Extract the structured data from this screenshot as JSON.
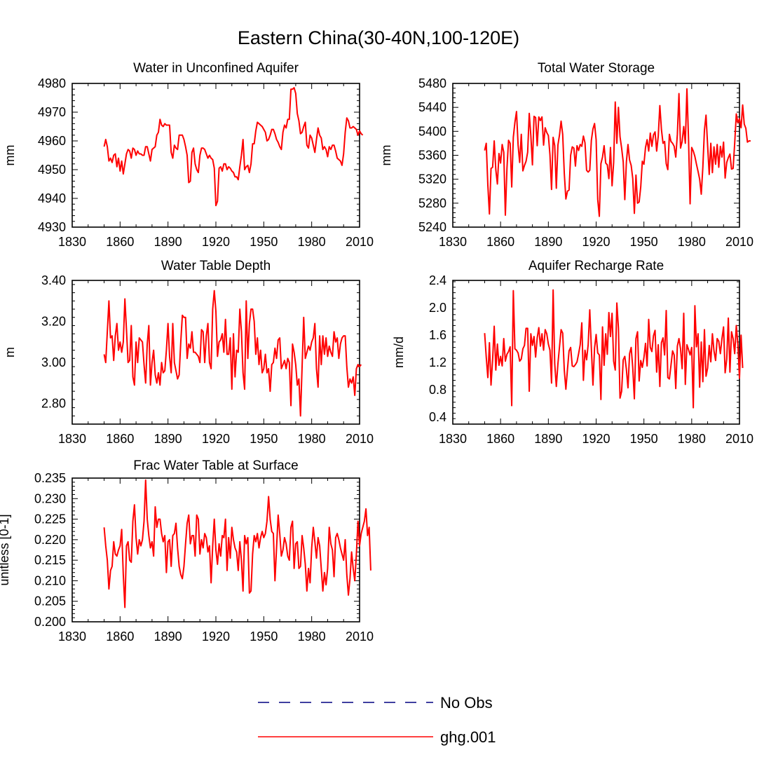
{
  "title": "Eastern China(30-40N,100-120E)",
  "colors": {
    "series": "#ff0000",
    "no_obs": "#000080",
    "axis": "#000000"
  },
  "legend": [
    {
      "label": "No Obs",
      "style": "dashed"
    },
    {
      "label": "ghg.001",
      "style": "solid"
    }
  ],
  "chart_data": [
    {
      "type": "line",
      "title": "Water in Unconfined Aquifer",
      "ylabel": "mm",
      "xlim": [
        1830,
        2010
      ],
      "ylim": [
        4930,
        4980
      ],
      "xticks": [
        1830,
        1860,
        1890,
        1920,
        1950,
        1980,
        2010
      ],
      "yticks": [
        4930,
        4940,
        4950,
        4960,
        4970,
        4980
      ],
      "ytick_labels": [
        "4930",
        "4940",
        "4950",
        "4960",
        "4970",
        "4980"
      ],
      "series": [
        {
          "name": "ghg.001",
          "x_start": 1850,
          "x_step": 1,
          "values": [
            4958,
            4960.5,
            4958,
            4953,
            4954,
            4952.5,
            4955,
            4955.5,
            4951,
            4954,
            4949.5,
            4953,
            4948.5,
            4952,
            4955.5,
            4957,
            4956.5,
            4954,
            4957.5,
            4957,
            4955,
            4956.5,
            4955.5,
            4955.5,
            4955,
            4955,
            4958,
            4958,
            4955.5,
            4953,
            4957,
            4957.5,
            4958,
            4962,
            4963,
            4967.5,
            4965.5,
            4965,
            4966,
            4965.5,
            4965.5,
            4965.5,
            4956,
            4954,
            4958.5,
            4957.5,
            4957,
            4962,
            4962,
            4962,
            4960.5,
            4958,
            4955,
            4945.5,
            4946,
            4956,
            4957.5,
            4952,
            4950,
            4949,
            4955,
            4957.5,
            4957.5,
            4957,
            4955.5,
            4954,
            4955,
            4954,
            4953.5,
            4950.5,
            4937.5,
            4939,
            4950.5,
            4951,
            4949.5,
            4952,
            4952,
            4950,
            4951,
            4950.5,
            4949.5,
            4949,
            4947.5,
            4947.5,
            4946.5,
            4951,
            4955,
            4960.5,
            4950,
            4951,
            4951.5,
            4949,
            4952,
            4959,
            4959,
            4963.5,
            4966.5,
            4966,
            4965.5,
            4965,
            4964,
            4963,
            4960,
            4960.5,
            4962,
            4964,
            4964,
            4962.5,
            4960.5,
            4959.5,
            4958,
            4957,
            4963,
            4965.5,
            4964.5,
            4967.5,
            4967.5,
            4978,
            4978,
            4978.5,
            4976.5,
            4969.5,
            4967,
            4962.5,
            4963,
            4965,
            4966.5,
            4958.5,
            4957.5,
            4962,
            4961,
            4958.5,
            4956,
            4960.5,
            4964.5,
            4962,
            4961,
            4957,
            4958,
            4957,
            4954.5,
            4958,
            4957,
            4958.5,
            4958.5,
            4956.5,
            4954,
            4953.5,
            4953,
            4951.5,
            4955.5,
            4963,
            4968,
            4967,
            4964.5,
            4964.5,
            4965,
            4964.5,
            4964,
            4962,
            4963.5,
            4962.5,
            4962
          ]
        }
      ]
    },
    {
      "type": "line",
      "title": "Total Water Storage",
      "ylabel": "mm",
      "xlim": [
        1830,
        2010
      ],
      "ylim": [
        5240,
        5480
      ],
      "xticks": [
        1830,
        1860,
        1890,
        1920,
        1950,
        1980,
        2010
      ],
      "yticks": [
        5240,
        5280,
        5320,
        5360,
        5400,
        5440,
        5480
      ],
      "ytick_labels": [
        "5240",
        "5280",
        "5320",
        "5360",
        "5400",
        "5440",
        "5480"
      ],
      "series": [
        {
          "name": "ghg.001",
          "x_start": 1850,
          "x_step": 1,
          "values": [
            5368,
            5380,
            5310,
            5262,
            5338,
            5340,
            5384,
            5336,
            5312,
            5363,
            5347,
            5378,
            5365,
            5260,
            5338,
            5385,
            5380,
            5307,
            5390,
            5415,
            5433,
            5377,
            5348,
            5395,
            5334,
            5343,
            5350,
            5365,
            5430,
            5393,
            5344,
            5425,
            5423,
            5376,
            5424,
            5418,
            5424,
            5377,
            5406,
            5398,
            5393,
            5361,
            5303,
            5390,
            5376,
            5305,
            5377,
            5394,
            5417,
            5395,
            5330,
            5287,
            5300,
            5302,
            5360,
            5374,
            5372,
            5342,
            5376,
            5368,
            5378,
            5375,
            5392,
            5381,
            5335,
            5332,
            5335,
            5385,
            5404,
            5413,
            5386,
            5286,
            5258,
            5346,
            5357,
            5376,
            5347,
            5344,
            5321,
            5373,
            5309,
            5348,
            5449,
            5380,
            5440,
            5391,
            5372,
            5349,
            5286,
            5349,
            5378,
            5352,
            5343,
            5321,
            5263,
            5327,
            5280,
            5282,
            5307,
            5350,
            5345,
            5373,
            5386,
            5367,
            5397,
            5375,
            5394,
            5399,
            5367,
            5392,
            5443,
            5403,
            5380,
            5383,
            5346,
            5336,
            5395,
            5383,
            5380,
            5375,
            5357,
            5395,
            5463,
            5372,
            5383,
            5408,
            5380,
            5471,
            5388,
            5279,
            5373,
            5367,
            5358,
            5345,
            5333,
            5320,
            5295,
            5340,
            5402,
            5427,
            5376,
            5328,
            5380,
            5331,
            5374,
            5345,
            5378,
            5340,
            5375,
            5357,
            5382,
            5322,
            5348,
            5356,
            5362,
            5337,
            5338,
            5380,
            5429,
            5414,
            5421,
            5406,
            5444,
            5412,
            5405,
            5382,
            5384,
            5384
          ]
        }
      ]
    },
    {
      "type": "line",
      "title": "Water Table Depth",
      "ylabel": "m",
      "xlim": [
        1830,
        2010
      ],
      "ylim": [
        2.7,
        3.4
      ],
      "xticks": [
        1830,
        1860,
        1890,
        1920,
        1950,
        1980,
        2010
      ],
      "yticks": [
        2.8,
        3.0,
        3.2,
        3.4
      ],
      "ytick_labels": [
        "2.80",
        "3.00",
        "3.20",
        "3.40"
      ],
      "series": [
        {
          "name": "ghg.001",
          "x_start": 1850,
          "x_step": 1,
          "values": [
            3.04,
            3.0,
            3.15,
            3.3,
            3.12,
            3.13,
            3.01,
            3.13,
            3.19,
            3.06,
            3.1,
            3.05,
            3.1,
            3.31,
            3.16,
            3.0,
            3.01,
            3.18,
            2.93,
            2.89,
            3.1,
            3.0,
            3.12,
            3.11,
            3.1,
            2.99,
            2.9,
            3.09,
            3.18,
            2.89,
            3.0,
            3.06,
            2.94,
            2.9,
            2.95,
            2.89,
            3.0,
            2.95,
            2.96,
            3.06,
            3.19,
            3.03,
            2.95,
            3.19,
            3.0,
            2.96,
            2.92,
            2.94,
            3.1,
            3.23,
            3.22,
            3.22,
            3.02,
            3.09,
            3.07,
            3.15,
            3.05,
            3.05,
            3.04,
            3.03,
            3.0,
            3.16,
            3.15,
            3.0,
            3.13,
            3.19,
            3.0,
            2.97,
            3.26,
            3.35,
            3.25,
            3.03,
            3.1,
            3.11,
            3.14,
            3.05,
            3.21,
            3.04,
            3.04,
            3.12,
            2.87,
            3.14,
            2.93,
            3.06,
            3.05,
            3.26,
            3.15,
            2.95,
            2.87,
            3.3,
            3.02,
            3.19,
            3.26,
            3.26,
            3.2,
            3.04,
            3.12,
            2.99,
            3.06,
            2.95,
            2.97,
            3.04,
            2.95,
            2.97,
            2.86,
            2.99,
            3.0,
            3.07,
            3.02,
            3.11,
            3.12,
            2.97,
            2.99,
            3.01,
            2.97,
            3.02,
            3.0,
            2.79,
            3.09,
            3.05,
            2.99,
            2.89,
            2.92,
            2.74,
            2.98,
            3.22,
            3.02,
            3.05,
            3.08,
            3.06,
            3.1,
            3.12,
            3.19,
            2.97,
            2.88,
            3.13,
            2.99,
            3.13,
            3.04,
            3.12,
            3.03,
            3.08,
            3.05,
            3.03,
            3.15,
            3.1,
            3.12,
            3.02,
            3.09,
            3.12,
            3.13,
            3.13,
            2.98,
            2.88,
            2.92,
            2.9,
            2.93,
            2.84,
            2.97,
            2.99,
            2.98,
            2.99
          ]
        }
      ]
    },
    {
      "type": "line",
      "title": "Aquifer Recharge Rate",
      "ylabel": "mm/d",
      "xlim": [
        1830,
        2010
      ],
      "ylim": [
        0.3,
        2.4
      ],
      "xticks": [
        1830,
        1860,
        1890,
        1920,
        1950,
        1980,
        2010
      ],
      "yticks": [
        0.4,
        0.8,
        1.2,
        1.6,
        2.0,
        2.4
      ],
      "ytick_labels": [
        "0.4",
        "0.8",
        "1.2",
        "1.6",
        "2.0",
        "2.4"
      ],
      "series": [
        {
          "name": "ghg.001",
          "x_start": 1850,
          "x_step": 1,
          "values": [
            1.63,
            1.28,
            0.98,
            1.49,
            0.87,
            1.24,
            1.73,
            1.09,
            1.47,
            1.16,
            1.29,
            1.15,
            1.55,
            1.22,
            1.32,
            1.36,
            1.43,
            0.57,
            2.25,
            1.4,
            1.38,
            1.34,
            1.22,
            1.25,
            1.4,
            1.45,
            1.7,
            1.7,
            0.78,
            1.62,
            1.45,
            1.58,
            1.28,
            1.56,
            1.71,
            1.44,
            1.62,
            1.38,
            1.68,
            1.62,
            1.47,
            1.38,
            0.9,
            2.26,
            1.18,
            0.85,
            1.18,
            1.43,
            1.68,
            1.63,
            1.09,
            0.81,
            1.1,
            1.37,
            1.42,
            1.15,
            1.14,
            1.17,
            1.21,
            1.33,
            1.46,
            1.78,
            0.94,
            1.38,
            1.24,
            1.46,
            1.97,
            1.41,
            0.87,
            1.41,
            1.61,
            1.34,
            1.31,
            0.66,
            1.72,
            1.16,
            1.62,
            1.32,
            1.93,
            1.58,
            1.92,
            1.22,
            1.09,
            2.07,
            1.7,
            0.68,
            0.78,
            1.24,
            1.29,
            1.1,
            0.83,
            1.33,
            1.42,
            1.12,
            0.67,
            1.55,
            1.65,
            0.93,
            1.23,
            1.13,
            1.27,
            1.48,
            1.15,
            1.83,
            1.42,
            1.36,
            1.59,
            1.67,
            1.06,
            1.46,
            0.85,
            1.49,
            1.56,
            1.31,
            1.96,
            0.98,
            0.96,
            1.16,
            1.37,
            1.31,
            0.82,
            1.44,
            1.55,
            1.4,
            1.11,
            1.92,
            0.88,
            1.46,
            1.39,
            1.31,
            1.42,
            0.54,
            2.03,
            1.43,
            1.62,
            0.84,
            1.5,
            0.92,
            1.68,
            1.0,
            1.12,
            1.45,
            1.21,
            1.62,
            1.37,
            1.23,
            1.55,
            1.51,
            1.33,
            1.55,
            1.72,
            1.05,
            1.25,
            1.85,
            1.06,
            1.65,
            1.55,
            1.33,
            1.74,
            1.46,
            0.97,
            1.6,
            1.12
          ]
        }
      ]
    },
    {
      "type": "line",
      "title": "Frac Water Table at Surface",
      "ylabel": "unitless [0-1]",
      "xlim": [
        1830,
        2010
      ],
      "ylim": [
        0.2,
        0.235
      ],
      "xticks": [
        1830,
        1860,
        1890,
        1920,
        1950,
        1980,
        2010
      ],
      "yticks": [
        0.2,
        0.205,
        0.21,
        0.215,
        0.22,
        0.225,
        0.23,
        0.235
      ],
      "ytick_labels": [
        "0.200",
        "0.205",
        "0.210",
        "0.215",
        "0.220",
        "0.225",
        "0.230",
        "0.235"
      ],
      "series": [
        {
          "name": "ghg.001",
          "x_start": 1850,
          "x_step": 1,
          "values": [
            0.223,
            0.2185,
            0.215,
            0.208,
            0.2125,
            0.2135,
            0.2195,
            0.2165,
            0.216,
            0.2175,
            0.2185,
            0.2225,
            0.2115,
            0.2035,
            0.2185,
            0.2195,
            0.215,
            0.2145,
            0.2245,
            0.2285,
            0.2205,
            0.2165,
            0.22,
            0.2185,
            0.22,
            0.2245,
            0.2345,
            0.225,
            0.221,
            0.218,
            0.2195,
            0.216,
            0.228,
            0.223,
            0.225,
            0.225,
            0.2215,
            0.2195,
            0.221,
            0.212,
            0.2195,
            0.22,
            0.2135,
            0.221,
            0.2215,
            0.224,
            0.218,
            0.2135,
            0.2115,
            0.2105,
            0.2135,
            0.219,
            0.224,
            0.226,
            0.219,
            0.221,
            0.221,
            0.216,
            0.226,
            0.225,
            0.2165,
            0.22,
            0.218,
            0.2215,
            0.2205,
            0.217,
            0.2185,
            0.2095,
            0.2185,
            0.225,
            0.2175,
            0.214,
            0.219,
            0.216,
            0.221,
            0.2205,
            0.225,
            0.2125,
            0.2205,
            0.2155,
            0.223,
            0.22,
            0.218,
            0.217,
            0.2125,
            0.2195,
            0.215,
            0.2075,
            0.221,
            0.219,
            0.2205,
            0.207,
            0.2075,
            0.2165,
            0.221,
            0.2195,
            0.2215,
            0.218,
            0.2205,
            0.222,
            0.2205,
            0.2215,
            0.2245,
            0.2305,
            0.225,
            0.222,
            0.2215,
            0.21,
            0.218,
            0.226,
            0.2215,
            0.216,
            0.2175,
            0.2205,
            0.219,
            0.216,
            0.215,
            0.223,
            0.2245,
            0.213,
            0.219,
            0.2195,
            0.213,
            0.2135,
            0.221,
            0.218,
            0.214,
            0.2075,
            0.213,
            0.2095,
            0.218,
            0.223,
            0.2195,
            0.2155,
            0.2205,
            0.2185,
            0.213,
            0.2075,
            0.212,
            0.209,
            0.213,
            0.223,
            0.219,
            0.2175,
            0.211,
            0.2205,
            0.2215,
            0.22,
            0.218,
            0.2165,
            0.215,
            0.22,
            0.2115,
            0.2065,
            0.2105,
            0.217,
            0.213,
            0.21,
            0.2165,
            0.2245,
            0.2185,
            0.2215,
            0.223,
            0.2245,
            0.2275,
            0.221,
            0.223,
            0.2125
          ]
        }
      ]
    }
  ]
}
